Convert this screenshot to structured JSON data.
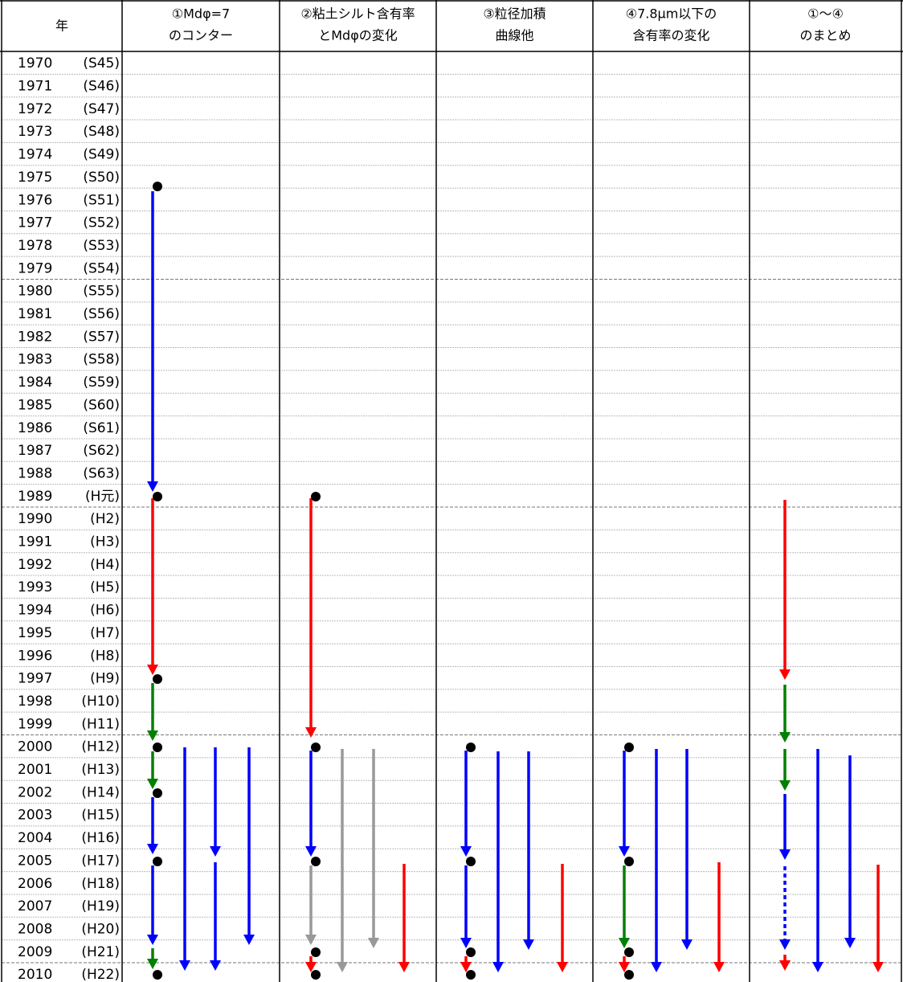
{
  "header": {
    "year": "年",
    "columns": [
      [
        "①Mdφ=7",
        "のコンター"
      ],
      [
        "②粘土シルト含有率",
        "とMdφの変化"
      ],
      [
        "③粒径加積",
        "曲線他"
      ],
      [
        "④7.8μm以下の",
        "含有率の変化"
      ],
      [
        "①～④",
        "のまとめ"
      ]
    ]
  },
  "rows": [
    [
      "1970",
      "(S45)"
    ],
    [
      "1971",
      "(S46)"
    ],
    [
      "1972",
      "(S47)"
    ],
    [
      "1973",
      "(S48)"
    ],
    [
      "1974",
      "(S49)"
    ],
    [
      "1975",
      "(S50)"
    ],
    [
      "1976",
      "(S51)"
    ],
    [
      "1977",
      "(S52)"
    ],
    [
      "1978",
      "(S53)"
    ],
    [
      "1979",
      "(S54)"
    ],
    [
      "1980",
      "(S55)"
    ],
    [
      "1981",
      "(S56)"
    ],
    [
      "1982",
      "(S57)"
    ],
    [
      "1983",
      "(S58)"
    ],
    [
      "1984",
      "(S59)"
    ],
    [
      "1985",
      "(S60)"
    ],
    [
      "1986",
      "(S61)"
    ],
    [
      "1987",
      "(S62)"
    ],
    [
      "1988",
      "(S63)"
    ],
    [
      "1989",
      "(H元)"
    ],
    [
      "1990",
      "(H2)"
    ],
    [
      "1991",
      "(H3)"
    ],
    [
      "1992",
      "(H4)"
    ],
    [
      "1993",
      "(H5)"
    ],
    [
      "1994",
      "(H6)"
    ],
    [
      "1995",
      "(H7)"
    ],
    [
      "1996",
      "(H8)"
    ],
    [
      "1997",
      "(H9)"
    ],
    [
      "1998",
      "(H10)"
    ],
    [
      "1999",
      "(H11)"
    ],
    [
      "2000",
      "(H12)"
    ],
    [
      "2001",
      "(H13)"
    ],
    [
      "2002",
      "(H14)"
    ],
    [
      "2003",
      "(H15)"
    ],
    [
      "2004",
      "(H16)"
    ],
    [
      "2005",
      "(H17)"
    ],
    [
      "2006",
      "(H18)"
    ],
    [
      "2007",
      "(H19)"
    ],
    [
      "2008",
      "(H20)"
    ],
    [
      "2009",
      "(H21)"
    ],
    [
      "2010",
      "(H22)"
    ]
  ]
}
